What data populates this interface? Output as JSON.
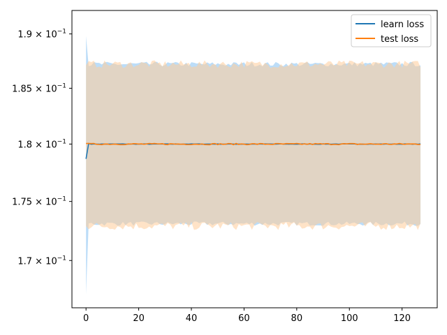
{
  "chart_data": {
    "type": "line",
    "title": "",
    "xlabel": "",
    "ylabel": "",
    "yscale": "log",
    "xlim": [
      -5.35,
      133.35
    ],
    "ylim": [
      0.1661,
      0.1922
    ],
    "x_ticks": [
      0,
      20,
      40,
      60,
      80,
      100,
      120
    ],
    "x_tick_labels": [
      "0",
      "20",
      "40",
      "60",
      "80",
      "100",
      "120"
    ],
    "y_ticks": [
      {
        "value": 0.19,
        "mantissa": "1.9",
        "exp": "−1"
      },
      {
        "value": 0.185,
        "mantissa": "1.85",
        "exp": "−1"
      },
      {
        "value": 0.18,
        "mantissa": "1.8",
        "exp": "−1"
      },
      {
        "value": 0.175,
        "mantissa": "1.75",
        "exp": "−1"
      },
      {
        "value": 0.17,
        "mantissa": "1.7",
        "exp": "−1"
      }
    ],
    "y_tick_base": "× 10",
    "legend_position": "top-right",
    "x": {
      "start": 0,
      "end": 127,
      "step": 1
    },
    "series": [
      {
        "name": "learn loss",
        "color": "#1f77b4",
        "band_color": "#a6d2f5",
        "mean": {
          "first": 0.1787,
          "second": 0.18005,
          "steady": 0.18,
          "noise": 2e-05
        },
        "band_lower": {
          "first": 0.1672,
          "steady": 0.1731,
          "noise": 0.00018
        },
        "band_upper": {
          "first": 0.1898,
          "steady": 0.1872,
          "noise": 0.00022
        }
      },
      {
        "name": "test loss",
        "color": "#ff7f0e",
        "band_color": "#ffcc99",
        "mean": {
          "first": 0.18005,
          "steady": 0.18,
          "noise": 6e-05
        },
        "band_lower": {
          "first": 0.1729,
          "steady": 0.1729,
          "noise": 0.00035
        },
        "band_upper": {
          "first": 0.1871,
          "steady": 0.1872,
          "noise": 0.00035
        }
      }
    ]
  }
}
